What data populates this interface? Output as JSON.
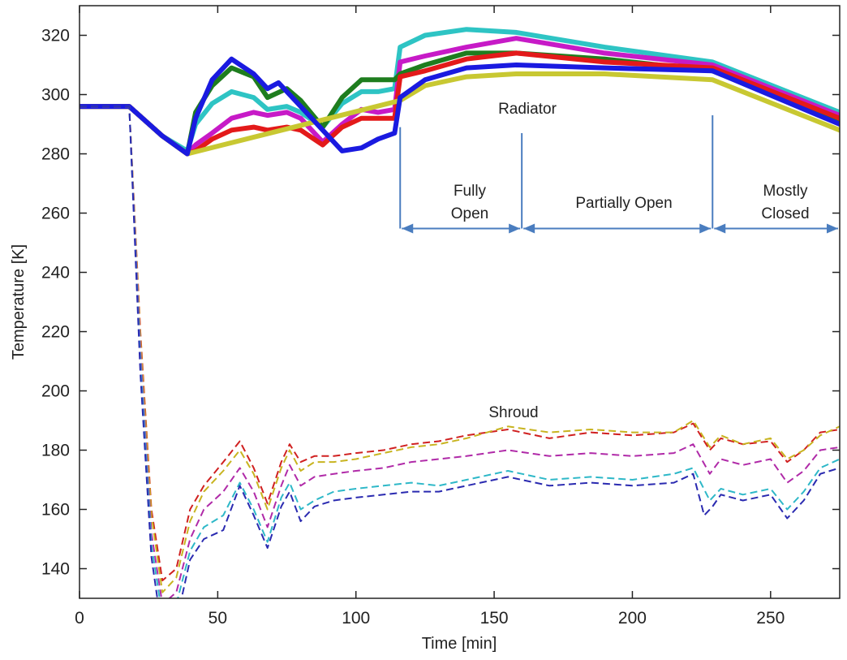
{
  "chart_data": {
    "type": "line",
    "xlabel": "Time [min]",
    "ylabel": "Temperature [K]",
    "xlim": [
      0,
      275
    ],
    "ylim": [
      130,
      330
    ],
    "xticks": [
      0,
      50,
      100,
      150,
      200,
      250
    ],
    "yticks": [
      140,
      160,
      180,
      200,
      220,
      240,
      260,
      280,
      300,
      320
    ],
    "grid": false,
    "legend": "none",
    "annotations": {
      "radiator": "Radiator",
      "shroud": "Shroud",
      "phase1": [
        "Fully",
        "Open"
      ],
      "phase2": "Partially Open",
      "phase3": [
        "Mostly",
        "Closed"
      ]
    },
    "phase_boundaries": [
      116,
      160,
      229,
      275
    ],
    "radiator_series": [
      {
        "color": "#2ec4c4",
        "x": [
          0,
          18,
          30,
          39,
          42,
          48,
          55,
          63,
          68,
          75,
          80,
          88,
          95,
          102,
          108,
          114,
          116,
          125,
          140,
          158,
          190,
          229,
          275
        ],
        "y": [
          296,
          296,
          286,
          281,
          290,
          297,
          301,
          299,
          295,
          296,
          294,
          289,
          297,
          301,
          301,
          302,
          316,
          320,
          322,
          321,
          316,
          311,
          294
        ]
      },
      {
        "color": "#c71ac7",
        "x": [
          0,
          18,
          30,
          39,
          42,
          48,
          55,
          63,
          68,
          75,
          80,
          88,
          95,
          102,
          108,
          114,
          116,
          125,
          140,
          158,
          190,
          229,
          275
        ],
        "y": [
          296,
          296,
          286,
          280,
          283,
          287,
          292,
          294,
          293,
          294,
          292,
          284,
          290,
          295,
          294,
          295,
          311,
          313,
          316,
          319,
          314,
          310,
          293
        ]
      },
      {
        "color": "#1e7d1e",
        "x": [
          0,
          18,
          30,
          39,
          42,
          48,
          55,
          63,
          68,
          75,
          80,
          88,
          95,
          102,
          108,
          114,
          116,
          125,
          140,
          158,
          190,
          229,
          275
        ],
        "y": [
          296,
          296,
          286,
          280,
          294,
          303,
          309,
          306,
          299,
          302,
          298,
          289,
          299,
          305,
          305,
          305,
          307,
          310,
          314,
          314,
          312,
          308,
          291
        ]
      },
      {
        "color": "#e31a1a",
        "x": [
          0,
          18,
          30,
          39,
          42,
          48,
          55,
          63,
          68,
          75,
          80,
          88,
          95,
          102,
          108,
          114,
          116,
          125,
          140,
          158,
          190,
          229,
          275
        ],
        "y": [
          296,
          296,
          286,
          280,
          281,
          285,
          288,
          289,
          288,
          289,
          288,
          283,
          289,
          292,
          292,
          292,
          306,
          308,
          312,
          314,
          311,
          309,
          292
        ]
      },
      {
        "color": "#c8c832",
        "x": [
          0,
          18,
          30,
          39,
          116,
          125,
          140,
          158,
          190,
          229,
          275
        ],
        "y": [
          296,
          296,
          286,
          280,
          298,
          303,
          306,
          307,
          307,
          305,
          288
        ]
      },
      {
        "color": "#1a1ae0",
        "x": [
          0,
          18,
          30,
          39,
          42,
          48,
          55,
          63,
          68,
          72,
          78,
          88,
          95,
          102,
          108,
          114,
          116,
          125,
          140,
          158,
          190,
          229,
          275
        ],
        "y": [
          296,
          296,
          286,
          280,
          292,
          305,
          312,
          307,
          302,
          304,
          298,
          288,
          281,
          282,
          285,
          287,
          299,
          305,
          309,
          310,
          309,
          308,
          290
        ]
      }
    ],
    "shroud_series": [
      {
        "color": "#d02020",
        "x": [
          0,
          18,
          22,
          26,
          30,
          35,
          40,
          45,
          52,
          58,
          63,
          68,
          73,
          76,
          80,
          85,
          92,
          100,
          110,
          120,
          130,
          140,
          155,
          170,
          185,
          200,
          215,
          222,
          228,
          232,
          240,
          250,
          256,
          262,
          268,
          275
        ],
        "y": [
          296,
          296,
          220,
          160,
          136,
          140,
          160,
          168,
          176,
          183,
          174,
          162,
          176,
          182,
          176,
          178,
          178,
          179,
          180,
          182,
          183,
          185,
          187,
          184,
          186,
          185,
          186,
          189,
          180,
          184,
          182,
          183,
          176,
          180,
          186,
          187
        ]
      },
      {
        "color": "#c8b420",
        "x": [
          0,
          18,
          22,
          26,
          30,
          35,
          40,
          45,
          52,
          58,
          63,
          68,
          73,
          76,
          80,
          85,
          92,
          100,
          110,
          120,
          130,
          140,
          155,
          170,
          185,
          200,
          215,
          222,
          228,
          232,
          240,
          250,
          256,
          262,
          268,
          275
        ],
        "y": [
          296,
          296,
          218,
          158,
          132,
          137,
          156,
          166,
          173,
          180,
          172,
          160,
          174,
          180,
          173,
          176,
          176,
          177,
          179,
          181,
          182,
          184,
          188,
          186,
          187,
          186,
          186,
          190,
          181,
          185,
          182,
          184,
          177,
          180,
          185,
          188
        ]
      },
      {
        "color": "#b02aa8",
        "x": [
          0,
          18,
          22,
          26,
          30,
          35,
          40,
          45,
          52,
          58,
          63,
          68,
          73,
          76,
          80,
          85,
          92,
          100,
          110,
          120,
          130,
          140,
          155,
          170,
          185,
          200,
          215,
          222,
          228,
          232,
          240,
          250,
          256,
          262,
          268,
          275
        ],
        "y": [
          296,
          296,
          214,
          152,
          128,
          132,
          150,
          160,
          166,
          174,
          166,
          154,
          168,
          175,
          168,
          171,
          172,
          173,
          174,
          176,
          177,
          178,
          180,
          178,
          179,
          178,
          179,
          182,
          172,
          177,
          175,
          177,
          169,
          173,
          180,
          181
        ]
      },
      {
        "color": "#2eb8c8",
        "x": [
          0,
          18,
          22,
          26,
          30,
          35,
          40,
          45,
          52,
          58,
          63,
          68,
          73,
          76,
          80,
          85,
          92,
          100,
          110,
          120,
          130,
          140,
          155,
          170,
          185,
          200,
          215,
          222,
          228,
          232,
          240,
          250,
          256,
          262,
          268,
          275
        ],
        "y": [
          296,
          296,
          210,
          148,
          124,
          128,
          146,
          154,
          158,
          169,
          160,
          149,
          164,
          169,
          160,
          163,
          166,
          167,
          168,
          169,
          168,
          170,
          173,
          170,
          171,
          170,
          172,
          174,
          163,
          167,
          165,
          167,
          160,
          166,
          174,
          177
        ]
      },
      {
        "color": "#2a2ab0",
        "x": [
          0,
          18,
          22,
          26,
          30,
          35,
          40,
          45,
          52,
          58,
          63,
          68,
          73,
          76,
          80,
          85,
          92,
          100,
          110,
          120,
          130,
          140,
          155,
          170,
          185,
          200,
          215,
          222,
          226,
          229,
          232,
          240,
          250,
          256,
          262,
          268,
          275
        ],
        "y": [
          296,
          296,
          206,
          144,
          118,
          122,
          143,
          150,
          153,
          168,
          158,
          147,
          161,
          166,
          156,
          161,
          163,
          164,
          165,
          166,
          166,
          168,
          171,
          168,
          169,
          168,
          169,
          172,
          158,
          161,
          165,
          163,
          165,
          157,
          163,
          172,
          174
        ]
      }
    ]
  }
}
